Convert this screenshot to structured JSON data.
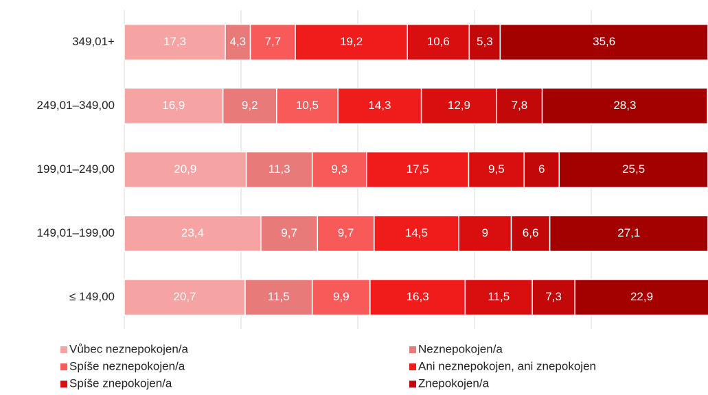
{
  "chart_data": {
    "type": "stacked-bar-horizontal",
    "categories": [
      "349,01+",
      "249,01–349,00",
      "199,01–249,00",
      "149,01–199,00",
      "≤ 149,00"
    ],
    "xlim": [
      0,
      100
    ],
    "xticks": [
      0,
      20,
      40,
      60,
      80
    ],
    "grid": true,
    "legend": "bottom",
    "series": [
      {
        "name": "Vůbec neznepokojen/a",
        "color": "#f5a3a3",
        "values": [
          17.3,
          16.9,
          20.9,
          23.4,
          20.7
        ],
        "value_labels": [
          "17,3",
          "16,9",
          "20,9",
          "23,4",
          "20,7"
        ]
      },
      {
        "name": "Neznepokojen/a",
        "color": "#e97a7a",
        "values": [
          4.3,
          9.2,
          11.3,
          9.7,
          11.5
        ],
        "value_labels": [
          "4,3",
          "9,2",
          "11,3",
          "9,7",
          "11,5"
        ]
      },
      {
        "name": "Spíše neznepokojen/a",
        "color": "#f85a5a",
        "values": [
          7.7,
          10.5,
          9.3,
          9.7,
          9.9
        ],
        "value_labels": [
          "7,7",
          "10,5",
          "9,3",
          "9,7",
          "9,9"
        ]
      },
      {
        "name": "Ani neznepokojen, ani znepokojen",
        "color": "#f01c1c",
        "values": [
          19.2,
          14.3,
          17.5,
          14.5,
          16.3
        ],
        "value_labels": [
          "19,2",
          "14,3",
          "17,5",
          "14,5",
          "16,3"
        ]
      },
      {
        "name": "Spíše znepokojen/a",
        "color": "#d90e0e",
        "values": [
          10.6,
          12.9,
          9.5,
          9,
          11.5
        ],
        "value_labels": [
          "10,6",
          "12,9",
          "9,5",
          "9",
          "11,5"
        ]
      },
      {
        "name": "Znepokojen/a",
        "color": "#c20808",
        "values": [
          5.3,
          7.8,
          6,
          6.6,
          7.3
        ],
        "value_labels": [
          "5,3",
          "7,8",
          "6",
          "6,6",
          "7,3"
        ]
      },
      {
        "color": "#a30000",
        "values": [
          35.6,
          28.3,
          25.5,
          27.1,
          22.9
        ],
        "value_labels": [
          "35,6",
          "28,3",
          "25,5",
          "27,1",
          "22,9"
        ]
      }
    ]
  }
}
